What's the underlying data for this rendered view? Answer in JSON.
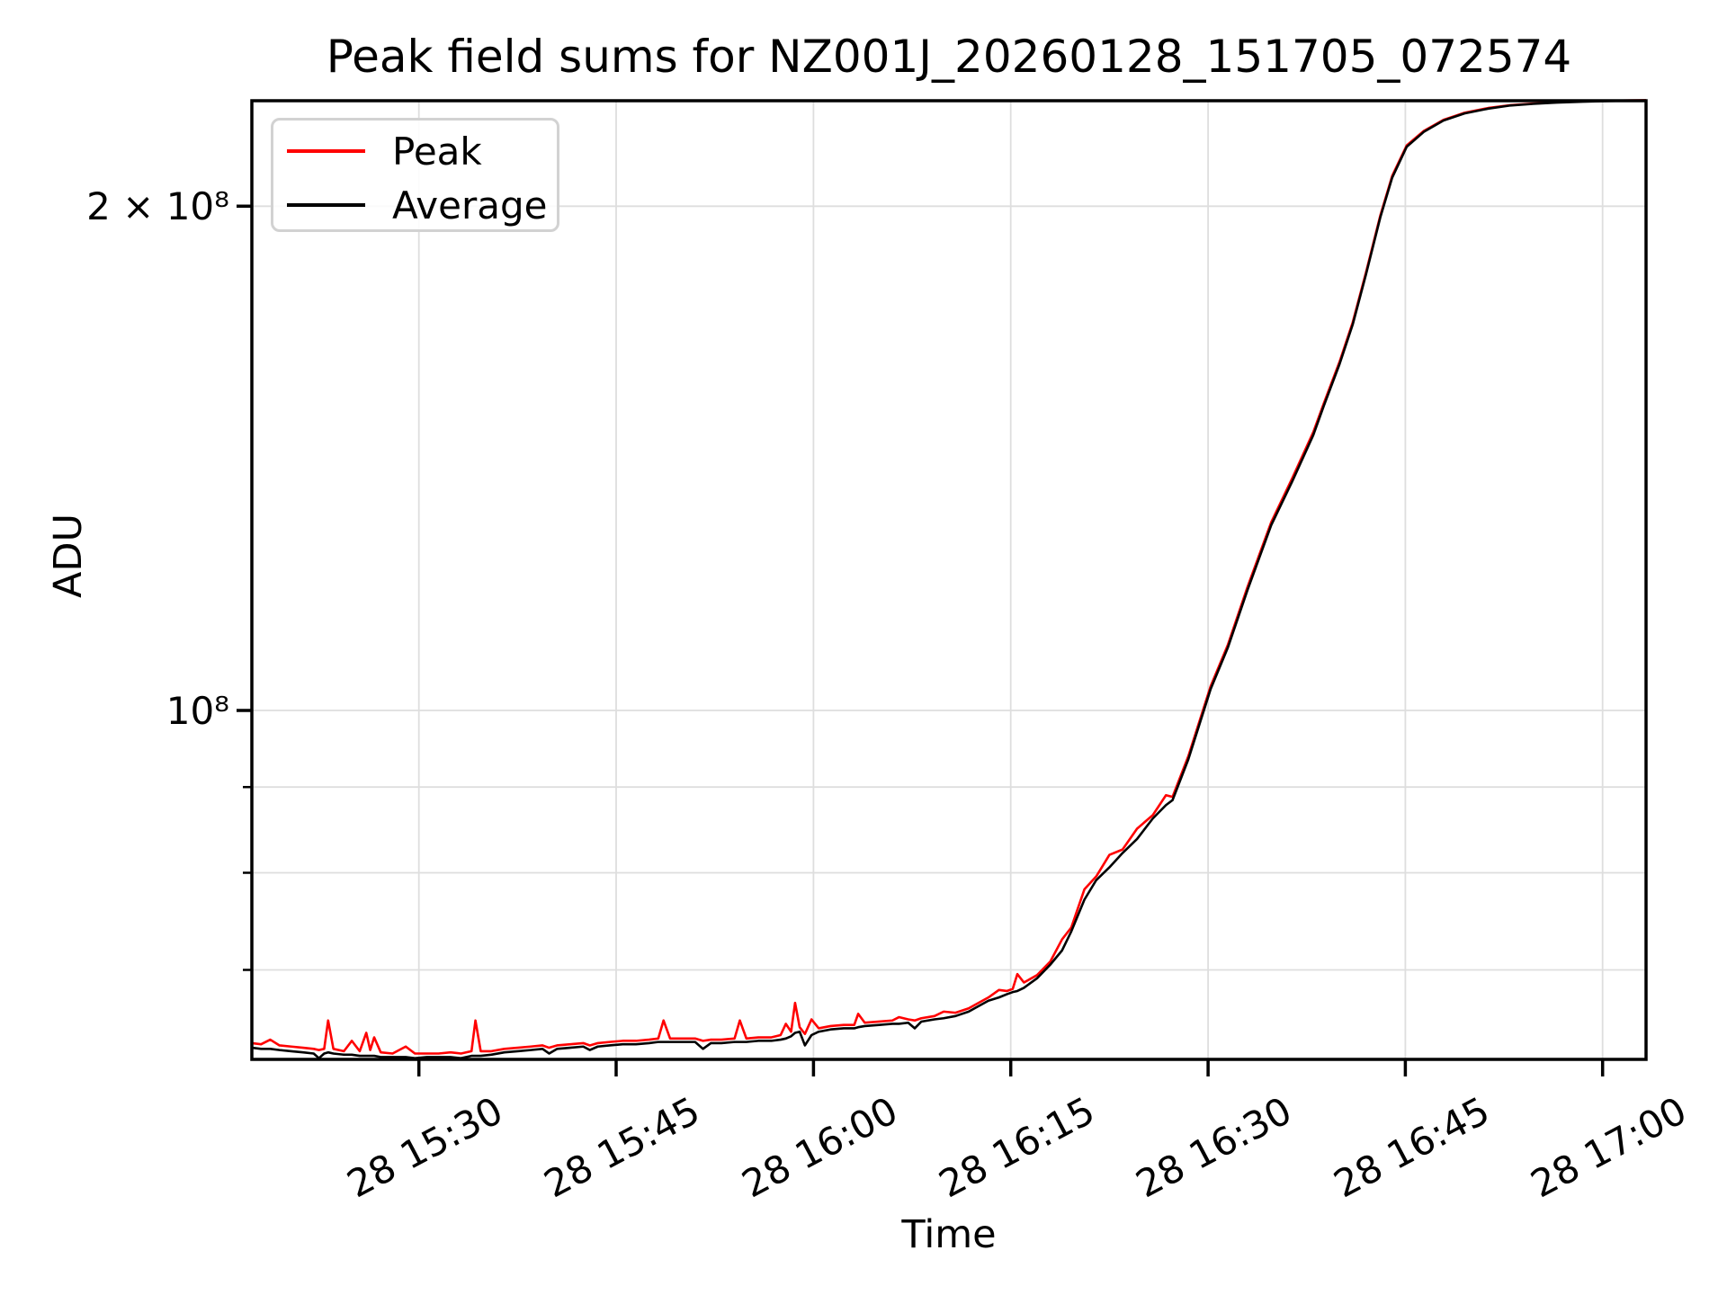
{
  "figure": {
    "title": "Peak field sums for NZ001J_20260128_151705_072574",
    "x_axis_label": "Time",
    "y_axis_label": "ADU",
    "background_color": "#ffffff"
  },
  "legend": {
    "position": "upper left",
    "items": [
      {
        "label": "Peak",
        "color": "#ff0000"
      },
      {
        "label": "Average",
        "color": "#000000"
      }
    ]
  },
  "axes": {
    "x_tick_labels": [
      "28 15:30",
      "28 15:45",
      "28 16:00",
      "28 16:15",
      "28 16:30",
      "28 16:45",
      "28 17:00"
    ],
    "x_ticks_minutes": [
      30,
      45,
      60,
      75,
      90,
      105,
      120
    ],
    "y_tick_labels": [
      "2 × 10⁸",
      "10⁸"
    ],
    "y_ticks_adu": [
      200000000.0,
      100000000.0
    ],
    "y_minor_ticks_adu": [
      70000000.0,
      80000000.0,
      90000000.0
    ],
    "y_gridlines_adu": [
      70000000.0,
      80000000.0,
      90000000.0,
      100000000.0,
      200000000.0
    ],
    "xlim_minutes": [
      17.3,
      123.3
    ],
    "ylim_adu": [
      61900000.0,
      231200000.0
    ],
    "yscale": "log",
    "grid_color": "#dedede",
    "spine_color": "#000000"
  },
  "chart_data": {
    "type": "line",
    "title": "Peak field sums for NZ001J_20260128_151705_072574",
    "xlabel": "Time",
    "ylabel": "ADU",
    "yscale": "log",
    "grid": true,
    "legend_position": "upper left",
    "x_unit": "minutes after 28 15:00 (30 = tick '28 15:30')",
    "xlim": [
      17.3,
      123.3
    ],
    "ylim": [
      61900000.0,
      231200000.0
    ],
    "series_names": [
      "Peak",
      "Average"
    ],
    "series_colors": [
      "#ff0000",
      "#000000"
    ],
    "columns": [
      "t_minutes",
      "average_adu",
      "peak_adu"
    ],
    "points": [
      [
        17.3,
        62900000.0,
        63300000.0
      ],
      [
        18.0,
        62800000.0,
        63200000.0
      ],
      [
        18.7,
        62800000.0,
        63600000.0
      ],
      [
        19.4,
        62700000.0,
        63100000.0
      ],
      [
        20.3,
        62600000.0,
        63000000.0
      ],
      [
        21.2,
        62500000.0,
        62900000.0
      ],
      [
        22.0,
        62400000.0,
        62800000.0
      ],
      [
        22.4,
        62000000.0,
        62700000.0
      ],
      [
        22.8,
        62400000.0,
        62800000.0
      ],
      [
        23.1,
        62500000.0,
        65300000.0
      ],
      [
        23.5,
        62400000.0,
        62800000.0
      ],
      [
        24.3,
        62300000.0,
        62600000.0
      ],
      [
        24.9,
        62300000.0,
        63500000.0
      ],
      [
        25.5,
        62200000.0,
        62600000.0
      ],
      [
        26.0,
        62200000.0,
        64200000.0
      ],
      [
        26.3,
        62200000.0,
        62700000.0
      ],
      [
        26.6,
        62200000.0,
        63800000.0
      ],
      [
        27.1,
        62100000.0,
        62500000.0
      ],
      [
        28.0,
        62100000.0,
        62400000.0
      ],
      [
        29.0,
        62100000.0,
        63000000.0
      ],
      [
        29.7,
        62000000.0,
        62400000.0
      ],
      [
        30.6,
        62100000.0,
        62400000.0
      ],
      [
        31.5,
        62100000.0,
        62400000.0
      ],
      [
        32.4,
        62100000.0,
        62500000.0
      ],
      [
        33.2,
        62000000.0,
        62400000.0
      ],
      [
        34.0,
        62200000.0,
        62600000.0
      ],
      [
        34.3,
        62200000.0,
        65300000.0
      ],
      [
        34.7,
        62200000.0,
        62600000.0
      ],
      [
        35.5,
        62300000.0,
        62600000.0
      ],
      [
        36.5,
        62500000.0,
        62800000.0
      ],
      [
        37.5,
        62600000.0,
        62900000.0
      ],
      [
        38.5,
        62700000.0,
        63000000.0
      ],
      [
        39.4,
        62800000.0,
        63100000.0
      ],
      [
        39.9,
        62400000.0,
        62900000.0
      ],
      [
        40.5,
        62800000.0,
        63100000.0
      ],
      [
        41.5,
        62900000.0,
        63200000.0
      ],
      [
        42.5,
        63000000.0,
        63300000.0
      ],
      [
        43.0,
        62700000.0,
        63100000.0
      ],
      [
        43.6,
        63000000.0,
        63300000.0
      ],
      [
        44.5,
        63100000.0,
        63400000.0
      ],
      [
        45.5,
        63200000.0,
        63500000.0
      ],
      [
        46.5,
        63200000.0,
        63500000.0
      ],
      [
        47.5,
        63300000.0,
        63600000.0
      ],
      [
        48.2,
        63400000.0,
        63700000.0
      ],
      [
        48.6,
        63400000.0,
        65300000.0
      ],
      [
        49.1,
        63400000.0,
        63700000.0
      ],
      [
        50.0,
        63400000.0,
        63700000.0
      ],
      [
        51.0,
        63400000.0,
        63700000.0
      ],
      [
        51.6,
        62800000.0,
        63500000.0
      ],
      [
        52.2,
        63300000.0,
        63600000.0
      ],
      [
        53.0,
        63300000.0,
        63600000.0
      ],
      [
        54.0,
        63400000.0,
        63700000.0
      ],
      [
        54.4,
        63400000.0,
        65300000.0
      ],
      [
        54.9,
        63400000.0,
        63700000.0
      ],
      [
        55.8,
        63500000.0,
        63800000.0
      ],
      [
        56.8,
        63500000.0,
        63800000.0
      ],
      [
        57.5,
        63600000.0,
        64000000.0
      ],
      [
        57.9,
        63700000.0,
        65000000.0
      ],
      [
        58.3,
        63900000.0,
        64300000.0
      ],
      [
        58.6,
        64200000.0,
        66900000.0
      ],
      [
        58.95,
        64300000.0,
        64700000.0
      ],
      [
        59.35,
        63100000.0,
        64100000.0
      ],
      [
        59.85,
        64000000.0,
        65400000.0
      ],
      [
        60.4,
        64300000.0,
        64600000.0
      ],
      [
        61.3,
        64500000.0,
        64800000.0
      ],
      [
        62.3,
        64600000.0,
        64900000.0
      ],
      [
        63.1,
        64600000.0,
        64900000.0
      ],
      [
        63.4,
        64700000.0,
        65900000.0
      ],
      [
        63.9,
        64800000.0,
        65100000.0
      ],
      [
        65.0,
        64900000.0,
        65200000.0
      ],
      [
        66.0,
        65000000.0,
        65300000.0
      ],
      [
        66.5,
        65000000.0,
        65600000.0
      ],
      [
        67.2,
        65100000.0,
        65400000.0
      ],
      [
        67.7,
        64600000.0,
        65300000.0
      ],
      [
        68.2,
        65200000.0,
        65500000.0
      ],
      [
        69.2,
        65400000.0,
        65700000.0
      ],
      [
        69.9,
        65500000.0,
        66100000.0
      ],
      [
        70.8,
        65700000.0,
        66000000.0
      ],
      [
        71.8,
        66100000.0,
        66400000.0
      ],
      [
        72.4,
        66500000.0,
        66800000.0
      ],
      [
        73.3,
        67100000.0,
        67400000.0
      ],
      [
        74.1,
        67400000.0,
        68100000.0
      ],
      [
        74.7,
        67700000.0,
        68000000.0
      ],
      [
        75.15,
        67900000.0,
        68200000.0
      ],
      [
        75.5,
        68000000.0,
        69600000.0
      ],
      [
        76.0,
        68300000.0,
        68800000.0
      ],
      [
        77.0,
        69200000.0,
        69500000.0
      ],
      [
        78.0,
        70500000.0,
        70800000.0
      ],
      [
        78.9,
        71900000.0,
        73000000.0
      ],
      [
        79.6,
        73800000.0,
        74200000.0
      ],
      [
        80.6,
        77100000.0,
        78200000.0
      ],
      [
        81.5,
        79200000.0,
        79600000.0
      ],
      [
        82.5,
        80600000.0,
        82000000.0
      ],
      [
        83.5,
        82200000.0,
        82600000.0
      ],
      [
        84.6,
        83800000.0,
        85000000.0
      ],
      [
        85.8,
        86200000.0,
        86600000.0
      ],
      [
        86.8,
        87800000.0,
        89000000.0
      ],
      [
        87.3,
        88400000.0,
        88800000.0
      ],
      [
        88.5,
        93500000.0,
        93900000.0
      ],
      [
        90.2,
        103000000.0,
        103400000.0
      ],
      [
        91.5,
        109000000.0,
        109400000.0
      ],
      [
        93.0,
        118000000.0,
        118500000.0
      ],
      [
        94.8,
        129000000.0,
        129500000.0
      ],
      [
        96.4,
        137000000.0,
        137600000.0
      ],
      [
        98.0,
        146000000.0,
        146600000.0
      ],
      [
        98.8,
        152000000.0,
        152500000.0
      ],
      [
        100.0,
        161000000.0,
        161500000.0
      ],
      [
        101.0,
        170000000.0,
        170500000.0
      ],
      [
        102.0,
        182000000.0,
        182500000.0
      ],
      [
        103.1,
        197000000.0,
        197500000.0
      ],
      [
        104.0,
        208000000.0,
        208500000.0
      ],
      [
        105.1,
        217000000.0,
        217400000.0
      ],
      [
        106.4,
        221500000.0,
        221800000.0
      ],
      [
        107.9,
        225000000.0,
        225200000.0
      ],
      [
        109.5,
        227200000.0,
        227400000.0
      ],
      [
        111.3,
        228700000.0,
        228900000.0
      ],
      [
        113.0,
        229700000.0,
        229800000.0
      ],
      [
        114.7,
        230200000.0,
        230300000.0
      ],
      [
        116.5,
        230600000.0,
        230700000.0
      ],
      [
        118.5,
        230900000.0,
        231000000.0
      ],
      [
        120.5,
        231100000.0,
        231200000.0
      ],
      [
        122.0,
        231200000.0,
        231300000.0
      ],
      [
        123.7,
        231300000.0,
        231400000.0
      ]
    ]
  }
}
